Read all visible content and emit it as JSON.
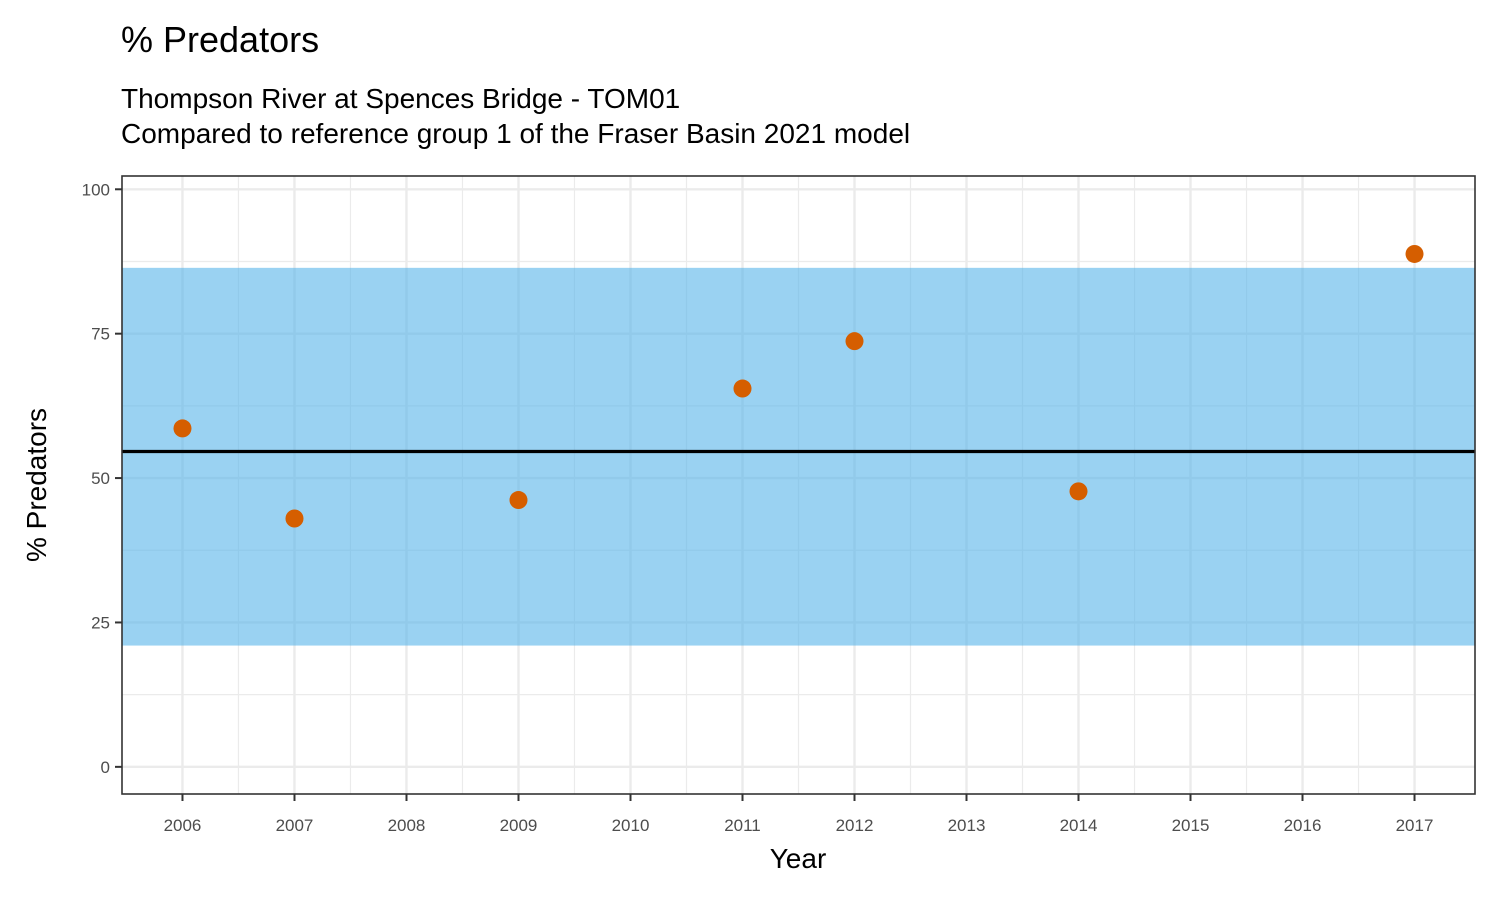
{
  "chart_data": {
    "type": "scatter",
    "title": "% Predators",
    "subtitle_lines": [
      "Thompson River at Spences Bridge - TOM01",
      "Compared to reference group 1 of the Fraser Basin 2021 model"
    ],
    "xlabel": "Year",
    "ylabel": "% Predators",
    "x_ticks": [
      "2006",
      "2007",
      "2008",
      "2009",
      "2010",
      "2011",
      "2012",
      "2013",
      "2014",
      "2015",
      "2016",
      "2017"
    ],
    "y_ticks": [
      "0",
      "25",
      "50",
      "75",
      "100"
    ],
    "xlim": [
      2005.46,
      2017.54
    ],
    "ylim": [
      -4.7,
      102.3
    ],
    "grid": true,
    "points": [
      {
        "x": 2006,
        "y": 58.6
      },
      {
        "x": 2007,
        "y": 43.0
      },
      {
        "x": 2009,
        "y": 46.2
      },
      {
        "x": 2011,
        "y": 65.5
      },
      {
        "x": 2012,
        "y": 73.7
      },
      {
        "x": 2014,
        "y": 47.7
      },
      {
        "x": 2017,
        "y": 88.8
      }
    ],
    "reference_band": {
      "lower": 21.0,
      "upper": 86.4
    },
    "reference_line": 54.6,
    "colors": {
      "points": "#D55E00",
      "band": "#56B4E9",
      "band_opacity": 0.6,
      "line": "#000000"
    }
  }
}
